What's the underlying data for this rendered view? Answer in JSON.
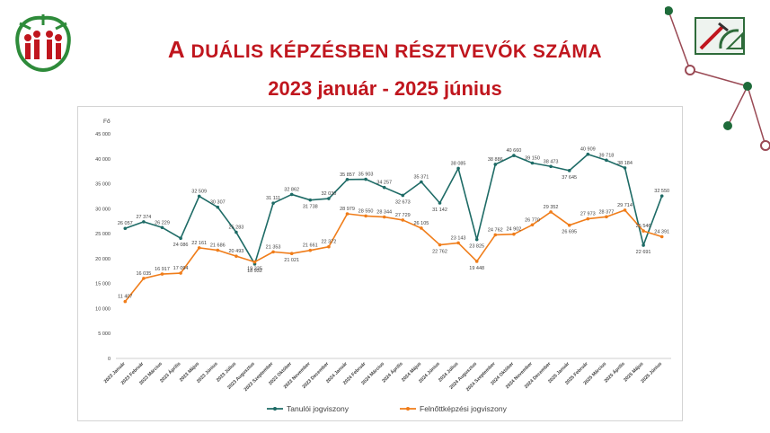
{
  "header": {
    "title": "A DUÁLIS KÉPZÉSBEN RÉSZTVEVŐK SZÁMA",
    "subtitle": "2023 január - 2025 június"
  },
  "colors": {
    "title": "#c0161e",
    "series_1": "#1e6b66",
    "series_2": "#f07d1a",
    "logo_green": "#2e8b3a",
    "logo_red": "#c0161e"
  },
  "icons": {
    "logo": "people-tree-logo",
    "deco": "blueprint-drawing-tools-icon"
  },
  "chart_data": {
    "type": "line",
    "ylabel": "Fő",
    "xlabel": "",
    "ylim": [
      0,
      45000
    ],
    "yticks": [
      "0",
      "5 000",
      "10 000",
      "15 000",
      "20 000",
      "25 000",
      "30 000",
      "35 000",
      "40 000",
      "45 000"
    ],
    "grid": false,
    "legend": "bottom",
    "categories": [
      "2023 Január",
      "2023 Február",
      "2023 Március",
      "2023 Április",
      "2023 Május",
      "2023 Június",
      "2023 Július",
      "2023 Augusztus",
      "2023 Szeptember",
      "2023 Október",
      "2023 November",
      "2023 December",
      "2024 Január",
      "2024 Február",
      "2024 Március",
      "2024 Április",
      "2024 Május",
      "2024 Június",
      "2024 Július",
      "2024 Augusztus",
      "2024 Szeptember",
      "2024 Október",
      "2024 November",
      "2024 December",
      "2025 Január",
      "2025 Február",
      "2025 Március",
      "2025 Április",
      "2025 Május",
      "2025 Június"
    ],
    "series": [
      {
        "name": "Tanulói jogviszony",
        "values": [
          26057,
          27374,
          26229,
          24086,
          32509,
          30307,
          25283,
          18932,
          31111,
          32862,
          31738,
          32030,
          35857,
          35903,
          34257,
          32673,
          35371,
          31142,
          38085,
          23825,
          38886,
          40660,
          39150,
          38473,
          37645,
          40909,
          39718,
          38184,
          22691,
          32550
        ],
        "labels": [
          "26 057",
          "27 374",
          "26 229",
          "24 086",
          "32 509",
          "30 307",
          "25 283",
          "18 932",
          "31 111",
          "32 862",
          "31 738",
          "32 030",
          "35 857",
          "35 903",
          "34 257",
          "32 673",
          "35 371",
          "31 142",
          "38 085",
          "23 825",
          "38 886",
          "40 660",
          "39 150",
          "38 473",
          "37 645",
          "40 909",
          "39 718",
          "38 184",
          "22 691",
          "32 550"
        ]
      },
      {
        "name": "Felnőttképzési jogviszony",
        "values": [
          11407,
          16035,
          16917,
          17094,
          22161,
          21686,
          20493,
          19335,
          21353,
          21021,
          21661,
          22372,
          28979,
          28550,
          28344,
          27729,
          26105,
          22762,
          23143,
          19448,
          24762,
          24902,
          26770,
          29352,
          26695,
          27973,
          28377,
          29714,
          25546,
          24391
        ],
        "labels": [
          "11 407",
          "16 035",
          "16 917",
          "17 094",
          "22 161",
          "21 686",
          "20 493",
          "19 335",
          "21 353",
          "21 021",
          "21 661",
          "22 372",
          "28 979",
          "28 550",
          "28 344",
          "27 729",
          "26 105",
          "22 762",
          "23 143",
          "19 448",
          "24 762",
          "24 902",
          "26 770",
          "29 352",
          "26 695",
          "27 973",
          "28 377",
          "29 714",
          "25 546",
          "24 391"
        ]
      }
    ]
  }
}
